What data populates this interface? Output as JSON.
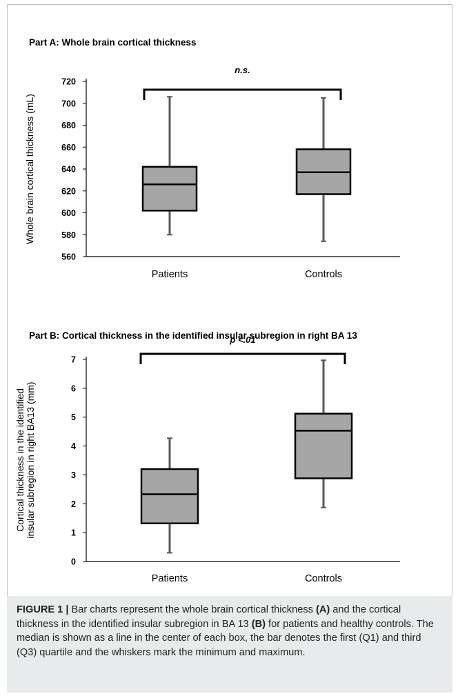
{
  "chart_data": [
    {
      "type": "box",
      "title": "Part A: Whole brain cortical thickness",
      "ylabel": "Whole brain cortical thickness (mL)",
      "ylim": [
        560,
        720
      ],
      "yticks": [
        560,
        580,
        600,
        620,
        640,
        660,
        680,
        700,
        720
      ],
      "categories": [
        "Patients",
        "Controls"
      ],
      "boxes": [
        {
          "min": 580,
          "q1": 602,
          "median": 626,
          "q3": 642,
          "max": 706
        },
        {
          "min": 574,
          "q1": 617,
          "median": 637,
          "q3": 658,
          "max": 705
        }
      ],
      "annotation": "n.s.",
      "grid": false
    },
    {
      "type": "box",
      "title": "Part B: Cortical thickness in the identified insular subregion in right BA 13",
      "ylabel_lines": [
        "Cortical thickness in the identified",
        "insular subregion in right BA13 (mm)"
      ],
      "ylim": [
        0,
        7
      ],
      "yticks": [
        0,
        1,
        2,
        3,
        4,
        5,
        6,
        7
      ],
      "categories": [
        "Patients",
        "Controls"
      ],
      "boxes": [
        {
          "min": 0.3,
          "q1": 1.32,
          "median": 2.33,
          "q3": 3.2,
          "max": 4.27
        },
        {
          "min": 1.87,
          "q1": 2.88,
          "median": 4.53,
          "q3": 5.12,
          "max": 6.97
        }
      ],
      "annotation": "p <.01",
      "grid": false
    }
  ],
  "colors": {
    "box_fill": "#a6a6a6",
    "box_stroke": "#000000",
    "whisker": "#595959",
    "caption_bg": "#e8ebeb",
    "frame": "#bfbfbf"
  },
  "caption": {
    "figure_label": "FIGURE 1 |",
    "segments": [
      {
        "text": " Bar charts represent the whole brain cortical thickness ",
        "bold": false
      },
      {
        "text": "(A)",
        "bold": true
      },
      {
        "text": " and the cortical thickness in the identified insular subregion in BA 13 ",
        "bold": false
      },
      {
        "text": "(B)",
        "bold": true
      },
      {
        "text": " for patients and healthy controls. The median is shown as a line in the center of each box, the bar denotes the first (Q1) and third (Q3) quartile and the whiskers mark the minimum and maximum.",
        "bold": false
      }
    ]
  }
}
